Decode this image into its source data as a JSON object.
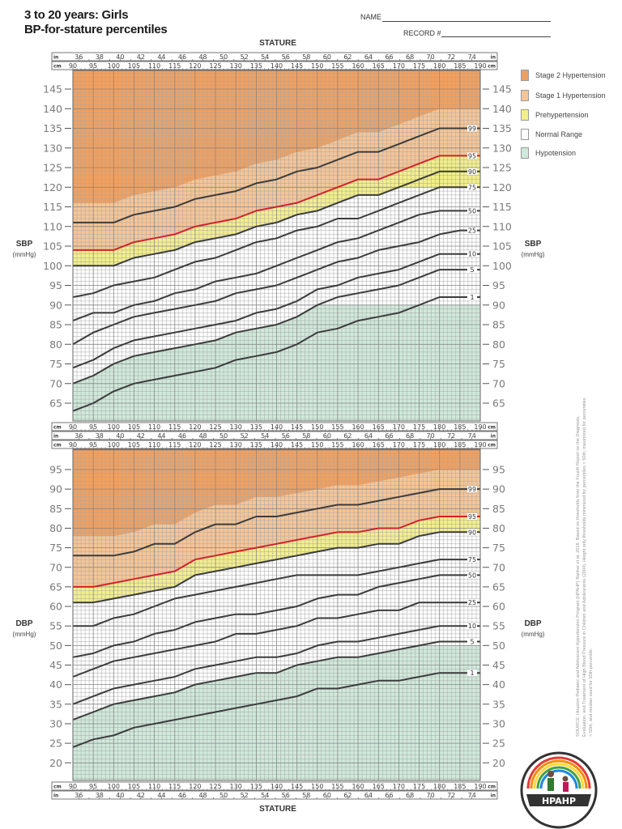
{
  "header": {
    "title_line1": "3 to 20 years: Girls",
    "title_line2": "BP-for-stature percentiles",
    "name_label": "NAME",
    "record_label": "RECORD #"
  },
  "stature_label": "STATURE",
  "ruler": {
    "cm_unit": "cm",
    "in_unit": "in",
    "cm_labels": [
      "90",
      "95",
      "100",
      "105",
      "110",
      "115",
      "120",
      "125",
      "130",
      "135",
      "140",
      "145",
      "150",
      "155",
      "160",
      "165",
      "170",
      "175",
      "180",
      "185",
      "190"
    ],
    "in_labels": [
      "36",
      "38",
      "40",
      "42",
      "44",
      "46",
      "48",
      "50",
      "52",
      "54",
      "56",
      "58",
      "60",
      "62",
      "64",
      "66",
      "68",
      "70",
      "72",
      "74"
    ]
  },
  "legend": [
    {
      "label": "Stage 2 Hypertension",
      "color": "#eea062"
    },
    {
      "label": "Stage 1 Hypertension",
      "color": "#f6c596"
    },
    {
      "label": "Prehypertension",
      "color": "#f3ef8a"
    },
    {
      "label": "Normal Range",
      "color": "#ffffff"
    },
    {
      "label": "Hypotension",
      "color": "#cfe9da"
    }
  ],
  "colors": {
    "curve": "#3b3b3b",
    "curve_95": "#d4212a",
    "grid": "#a8a8a8",
    "tick_label": "#7a7a7a"
  },
  "source_text": "SOURCE: Houston Pediatric and Adolescent Hypertension Program (HPAHP) Banker et al, 2016. Based on thresholds from the Fourth Report on the Diagnosis, Evaluation, and Treatment of High Blood Pressure in Children and Adolescents (2004). Height only thresholds minimized for percentiles > 50th, maximized for percentiles < 50th, and median used for 50th percentile.",
  "logo_text": "HPAHP",
  "chart_data": [
    {
      "type": "line",
      "title": "",
      "ylabel": "SBP",
      "yunit": "(mmHg)",
      "xlabel": "STATURE",
      "xlim": [
        90,
        190
      ],
      "ylim": [
        60.5,
        150
      ],
      "yticks": [
        65,
        70,
        75,
        80,
        85,
        90,
        95,
        100,
        105,
        110,
        115,
        120,
        125,
        130,
        135,
        140,
        145
      ],
      "grid": true,
      "zone_caps": {
        "prehypertension": 120,
        "hypotension": 90
      },
      "x_cm": [
        90,
        95,
        100,
        105,
        110,
        115,
        120,
        125,
        130,
        135,
        140,
        145,
        150,
        155,
        160,
        165,
        170,
        175,
        180,
        185,
        190
      ],
      "series": [
        {
          "name": "99",
          "values": [
            111,
            111,
            111,
            113,
            114,
            115,
            117,
            118,
            119,
            121,
            122,
            124,
            125,
            127,
            129,
            129,
            131,
            133,
            135,
            135,
            135
          ]
        },
        {
          "name": "95",
          "values": [
            104,
            104,
            104,
            106,
            107,
            108,
            110,
            111,
            112,
            114,
            115,
            116,
            118,
            120,
            122,
            122,
            124,
            126,
            128,
            128,
            128
          ]
        },
        {
          "name": "90",
          "values": [
            100,
            100,
            100,
            102,
            103,
            104,
            106,
            107,
            108,
            110,
            111,
            113,
            114,
            116,
            118,
            118,
            120,
            122,
            124,
            124,
            124
          ]
        },
        {
          "name": "75",
          "values": [
            92,
            93,
            95,
            96,
            97,
            99,
            101,
            102,
            104,
            106,
            107,
            109,
            110,
            112,
            112,
            114,
            116,
            118,
            120,
            120,
            120
          ]
        },
        {
          "name": "50",
          "values": [
            86,
            88,
            88,
            90,
            91,
            93,
            94,
            96,
            97,
            98,
            100,
            102,
            104,
            106,
            107,
            109,
            111,
            113,
            114,
            114,
            114
          ]
        },
        {
          "name": "25",
          "values": [
            80,
            83,
            85,
            87,
            88,
            89,
            90,
            91,
            93,
            94,
            95,
            97,
            99,
            101,
            102,
            104,
            105,
            106,
            108,
            109,
            109
          ]
        },
        {
          "name": "10",
          "values": [
            74,
            76,
            79,
            81,
            82,
            83,
            84,
            85,
            86,
            88,
            89,
            91,
            94,
            95,
            97,
            98,
            99,
            101,
            103,
            103,
            103
          ]
        },
        {
          "name": "5",
          "values": [
            70,
            72,
            75,
            77,
            78,
            79,
            80,
            81,
            83,
            84,
            85,
            87,
            90,
            92,
            93,
            94,
            95,
            97,
            99,
            99,
            99
          ]
        },
        {
          "name": "1",
          "values": [
            63,
            65,
            68,
            70,
            71,
            72,
            73,
            74,
            76,
            77,
            78,
            80,
            83,
            84,
            86,
            87,
            88,
            90,
            92,
            92,
            92
          ]
        }
      ]
    },
    {
      "type": "line",
      "title": "",
      "ylabel": "DBP",
      "yunit": "(mmHg)",
      "xlabel": "STATURE",
      "xlim": [
        90,
        190
      ],
      "ylim": [
        15.5,
        100
      ],
      "yticks": [
        20,
        25,
        30,
        35,
        40,
        45,
        50,
        55,
        60,
        65,
        70,
        75,
        80,
        85,
        90,
        95
      ],
      "grid": true,
      "zone_caps": {
        "prehypertension": 80,
        "hypotension": 50
      },
      "x_cm": [
        90,
        95,
        100,
        105,
        110,
        115,
        120,
        125,
        130,
        135,
        140,
        145,
        150,
        155,
        160,
        165,
        170,
        175,
        180,
        185,
        190
      ],
      "series": [
        {
          "name": "99",
          "values": [
            73,
            73,
            73,
            74,
            76,
            76,
            79,
            81,
            81,
            83,
            83,
            84,
            85,
            86,
            86,
            87,
            88,
            89,
            90,
            90,
            90
          ]
        },
        {
          "name": "95",
          "values": [
            65,
            65,
            66,
            67,
            68,
            69,
            72,
            73,
            74,
            75,
            76,
            77,
            78,
            79,
            79,
            80,
            80,
            82,
            83,
            83,
            83
          ]
        },
        {
          "name": "90",
          "values": [
            61,
            61,
            62,
            63,
            64,
            65,
            68,
            69,
            70,
            71,
            72,
            73,
            74,
            75,
            75,
            76,
            76,
            78,
            79,
            79,
            79
          ]
        },
        {
          "name": "75",
          "values": [
            55,
            55,
            57,
            58,
            60,
            62,
            63,
            64,
            65,
            66,
            67,
            68,
            68,
            68,
            68,
            69,
            70,
            71,
            72,
            72,
            72
          ]
        },
        {
          "name": "50",
          "values": [
            47,
            48,
            50,
            51,
            53,
            54,
            56,
            57,
            58,
            58,
            59,
            60,
            62,
            63,
            63,
            65,
            66,
            67,
            68,
            68,
            68
          ]
        },
        {
          "name": "25",
          "values": [
            42,
            44,
            46,
            47,
            48,
            49,
            50,
            51,
            53,
            53,
            54,
            55,
            57,
            57,
            58,
            59,
            59,
            61,
            61,
            61,
            61
          ]
        },
        {
          "name": "10",
          "values": [
            35,
            37,
            39,
            40,
            41,
            42,
            44,
            45,
            46,
            47,
            47,
            48,
            50,
            51,
            51,
            52,
            53,
            54,
            55,
            55,
            55
          ]
        },
        {
          "name": "5",
          "values": [
            31,
            33,
            35,
            36,
            37,
            38,
            40,
            41,
            42,
            43,
            43,
            45,
            46,
            47,
            47,
            48,
            49,
            50,
            51,
            51,
            51
          ]
        },
        {
          "name": "1",
          "values": [
            24,
            26,
            27,
            29,
            30,
            31,
            32,
            33,
            34,
            35,
            36,
            37,
            39,
            39,
            40,
            41,
            41,
            42,
            43,
            43,
            43
          ]
        }
      ]
    }
  ]
}
